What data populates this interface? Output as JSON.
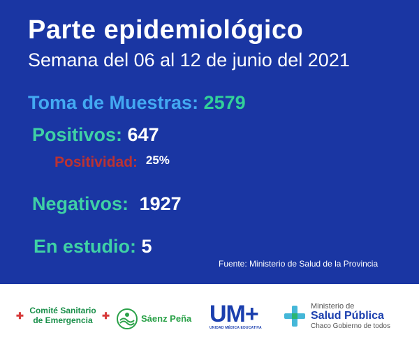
{
  "header": {
    "title": "Parte epidemiológico",
    "subtitle": "Semana del 06 al 12 de junio del 2021"
  },
  "stats": {
    "muestras": {
      "label": "Toma de Muestras:",
      "value": "2579"
    },
    "positivos": {
      "label": "Positivos:",
      "value": "647"
    },
    "positividad": {
      "label": "Positividad:",
      "value": "25%"
    },
    "negativos": {
      "label": "Negativos:",
      "value": "1927"
    },
    "estudio": {
      "label": "En estudio:",
      "value": "5"
    }
  },
  "source": "Fuente: Ministerio de Salud de la Provincia",
  "footer": {
    "comite_line1": "Comité Sanitario",
    "comite_line2": "de Emergencia",
    "saenz": "Sáenz Peña",
    "ume_letters": "UM+",
    "ume_sub": "UNIDAD MÉDICA EDUCATIVA",
    "msp_line1": "Ministerio de",
    "msp_line2": "Salud Pública",
    "msp_line3": "Chaco Gobierno de todos"
  },
  "colors": {
    "background": "#1a36a3",
    "blue_label": "#43a9f2",
    "green_label": "#3fd1a5",
    "red_label": "#bb3232"
  }
}
